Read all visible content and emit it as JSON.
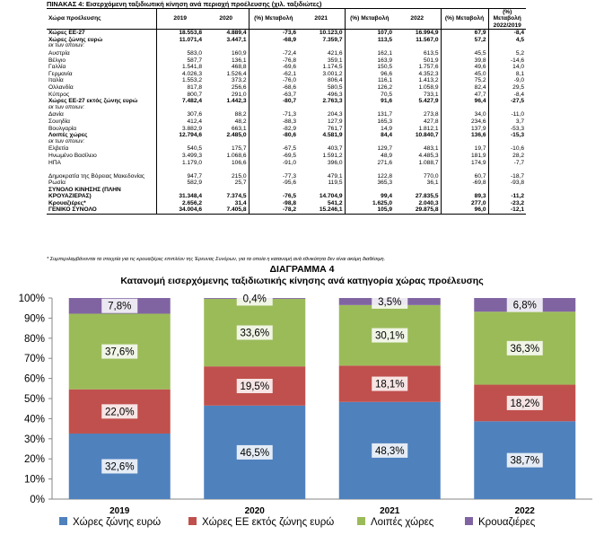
{
  "table": {
    "title": "ΠΙΝΑΚΑΣ 4: Εισερχόμενη ταξιδιωτική κίνηση ανά περιοχή προέλευσης (χιλ. ταξιδιώτες)",
    "headers": [
      "Χώρα προέλευσης",
      "2019",
      "2020",
      "(%) Μεταβολή",
      "2021",
      "(%) Μεταβολή",
      "2022",
      "(%) Μεταβολή",
      "(%) Μεταβολή 2022/2019"
    ],
    "rows": [
      {
        "cells": [
          "Χώρες ΕΕ-27",
          "18.553,8",
          "4.889,4",
          "-73,6",
          "10.123,0",
          "107,0",
          "16.994,9",
          "67,9",
          "-8,4"
        ],
        "style": "bold"
      },
      {
        "cells": [
          "Χώρες ζώνης ευρώ",
          "11.071,4",
          "3.447,1",
          "-68,9",
          "7.359,7",
          "113,5",
          "11.567,0",
          "57,2",
          "4,5"
        ],
        "style": "bold"
      },
      {
        "cells": [
          "εκ των οποίων:",
          "",
          "",
          "",
          "",
          "",
          "",
          "",
          ""
        ],
        "style": "sub"
      },
      {
        "cells": [
          "Αυστρία",
          "583,0",
          "160,9",
          "-72,4",
          "421,6",
          "162,1",
          "613,5",
          "45,5",
          "5,2"
        ],
        "style": ""
      },
      {
        "cells": [
          "Βέλγιο",
          "587,7",
          "136,1",
          "-76,8",
          "359,1",
          "163,9",
          "501,9",
          "39,8",
          "-14,6"
        ],
        "style": ""
      },
      {
        "cells": [
          "Γαλλία",
          "1.541,8",
          "468,8",
          "-69,6",
          "1.174,5",
          "150,5",
          "1.757,6",
          "49,6",
          "14,0"
        ],
        "style": ""
      },
      {
        "cells": [
          "Γερμανία",
          "4.026,3",
          "1.526,4",
          "-62,1",
          "3.001,2",
          "96,6",
          "4.352,3",
          "45,0",
          "8,1"
        ],
        "style": ""
      },
      {
        "cells": [
          "Ιταλία",
          "1.553,2",
          "373,2",
          "-76,0",
          "806,4",
          "116,1",
          "1.413,2",
          "75,2",
          "-9,0"
        ],
        "style": ""
      },
      {
        "cells": [
          "Ολλανδία",
          "817,8",
          "256,6",
          "-68,6",
          "580,5",
          "126,2",
          "1.058,9",
          "82,4",
          "29,5"
        ],
        "style": ""
      },
      {
        "cells": [
          "Κύπρος",
          "800,7",
          "291,0",
          "-63,7",
          "496,3",
          "70,5",
          "733,1",
          "47,7",
          "-8,4"
        ],
        "style": ""
      },
      {
        "cells": [
          "Χώρες ΕΕ-27 εκτός ζώνης ευρώ",
          "7.482,4",
          "1.442,3",
          "-80,7",
          "2.763,3",
          "91,6",
          "5.427,9",
          "96,4",
          "-27,5"
        ],
        "style": "bold"
      },
      {
        "cells": [
          "εκ των οποίων:",
          "",
          "",
          "",
          "",
          "",
          "",
          "",
          ""
        ],
        "style": "sub"
      },
      {
        "cells": [
          "Δανία",
          "307,6",
          "88,2",
          "-71,3",
          "204,3",
          "131,7",
          "273,8",
          "34,0",
          "-11,0"
        ],
        "style": ""
      },
      {
        "cells": [
          "Σουηδία",
          "412,4",
          "48,2",
          "-88,3",
          "127,9",
          "165,3",
          "427,8",
          "234,6",
          "3,7"
        ],
        "style": ""
      },
      {
        "cells": [
          "Βουλγαρία",
          "3.882,9",
          "663,1",
          "-82,9",
          "761,7",
          "14,9",
          "1.812,1",
          "137,9",
          "-53,3"
        ],
        "style": ""
      },
      {
        "cells": [
          "Λοιπές χώρες",
          "12.794,6",
          "2.485,0",
          "-80,6",
          "4.581,9",
          "84,4",
          "10.840,7",
          "136,6",
          "-15,3"
        ],
        "style": "bold"
      },
      {
        "cells": [
          "εκ των οποίων:",
          "",
          "",
          "",
          "",
          "",
          "",
          "",
          ""
        ],
        "style": "sub"
      },
      {
        "cells": [
          "Ελβετία",
          "540,5",
          "175,7",
          "-67,5",
          "403,7",
          "129,7",
          "483,1",
          "19,7",
          "-10,6"
        ],
        "style": ""
      },
      {
        "cells": [
          "Ηνωμένο Βασίλειο",
          "3.499,3",
          "1.068,6",
          "-69,5",
          "1.591,2",
          "48,9",
          "4.485,3",
          "181,9",
          "28,2"
        ],
        "style": ""
      },
      {
        "cells": [
          "ΗΠΑ",
          "1.179,0",
          "106,6",
          "-91,0",
          "396,0",
          "271,6",
          "1.088,7",
          "174,9",
          "-7,7"
        ],
        "style": ""
      },
      {
        "cells": [
          "Δημοκρατία της Βόρειας Μακεδονίας",
          "947,7",
          "215,0",
          "-77,3",
          "479,1",
          "122,8",
          "770,0",
          "60,7",
          "-18,7"
        ],
        "style": "ml"
      },
      {
        "cells": [
          "Ρωσία",
          "582,9",
          "25,7",
          "-95,6",
          "119,5",
          "365,3",
          "36,1",
          "-69,8",
          "-93,8"
        ],
        "style": ""
      },
      {
        "cells": [
          "ΣΥΝΟΛΟ ΚΙΝΗΣΗΣ (ΠΛΗΝ ΚΡΟΥΑΖΙΕΡΑΣ)",
          "31.348,4",
          "7.374,5",
          "-76,5",
          "14.704,9",
          "99,4",
          "27.835,5",
          "89,3",
          "-11,2"
        ],
        "style": "bold ml"
      },
      {
        "cells": [
          "Κρουαζιέρες*",
          "2.656,2",
          "31,4",
          "-98,8",
          "541,2",
          "1.625,0",
          "2.040,3",
          "277,0",
          "-23,2"
        ],
        "style": "bold"
      },
      {
        "cells": [
          "ΓΕΝΙΚΟ ΣΥΝΟΛΟ",
          "34.004,6",
          "7.405,8",
          "-78,2",
          "15.246,1",
          "105,9",
          "29.875,8",
          "96,0",
          "-12,1"
        ],
        "style": "bold last"
      }
    ],
    "footnote": "* Συμπεριλαμβάνονται τα στοιχεία για τις κρουαζιέρες επιπλέον της Έρευνας Συνόρων, για τα οποία η κατανομή ανά εθνικότητα δεν είναι ακόμη διαθέσιμη."
  },
  "chart_heading": {
    "line1": "ΔΙΑΓΡΑΜΜΑ 4",
    "line2": "Κατανομή εισερχόμενης ταξιδιωτικής κίνησης ανά κατηγορία χώρας προέλευσης"
  },
  "chart_data": {
    "type": "bar",
    "stacked": true,
    "categories": [
      "2019",
      "2020",
      "2021",
      "2022"
    ],
    "series": [
      {
        "name": "Χώρες ζώνης ευρώ",
        "color": "#4f81bd",
        "values": [
          32.6,
          46.5,
          48.3,
          38.7
        ],
        "labels": [
          "32,6%",
          "46,5%",
          "48,3%",
          "38,7%"
        ]
      },
      {
        "name": "Χώρες ΕΕ εκτός ζώνης ευρώ",
        "color": "#c0504d",
        "values": [
          22.0,
          19.5,
          18.1,
          18.2
        ],
        "labels": [
          "22,0%",
          "19,5%",
          "18,1%",
          "18,2%"
        ]
      },
      {
        "name": "Λοιπές χώρες",
        "color": "#9bbb59",
        "values": [
          37.6,
          33.6,
          30.1,
          36.3
        ],
        "labels": [
          "37,6%",
          "33,6%",
          "30,1%",
          "36,3%"
        ]
      },
      {
        "name": "Κρουαζιέρες",
        "color": "#8064a2",
        "values": [
          7.8,
          0.4,
          3.5,
          6.8
        ],
        "labels": [
          "7,8%",
          "0,4%",
          "3,5%",
          "6,8%"
        ]
      }
    ],
    "y_ticks": [
      "0%",
      "10%",
      "20%",
      "30%",
      "40%",
      "50%",
      "60%",
      "70%",
      "80%",
      "90%",
      "100%"
    ],
    "ylim": [
      0,
      100
    ],
    "grid": false,
    "legend_position": "bottom"
  }
}
